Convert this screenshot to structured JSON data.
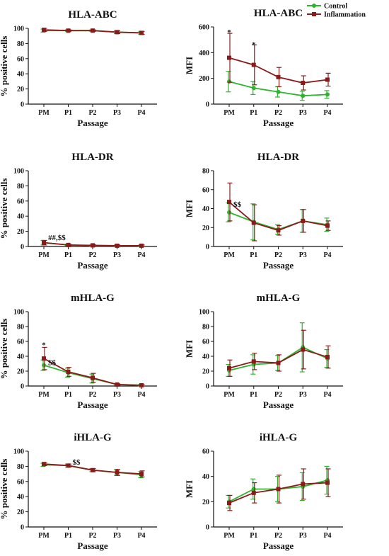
{
  "legend": [
    {
      "name": "Control",
      "color": "#2db52d",
      "marker": "circle"
    },
    {
      "name": "Inflammation",
      "color": "#8b1a1a",
      "marker": "square"
    }
  ],
  "chart_data": [
    {
      "type": "line",
      "title": "HLA-ABC",
      "xlabel": "Passage",
      "ylabel": "% positive cells",
      "categories": [
        "PM",
        "P1",
        "P2",
        "P3",
        "P4"
      ],
      "ylim": [
        0,
        100
      ],
      "yticks": [
        0,
        20,
        40,
        60,
        80,
        100
      ],
      "series": [
        {
          "name": "Control",
          "values": [
            97,
            97,
            97,
            95,
            94
          ],
          "err": [
            2,
            1,
            1,
            2,
            2
          ]
        },
        {
          "name": "Inflammation",
          "values": [
            98,
            97,
            97,
            95,
            94
          ],
          "err": [
            2,
            1,
            1,
            2,
            2
          ]
        }
      ],
      "annotations": []
    },
    {
      "type": "line",
      "title": "HLA-ABC",
      "xlabel": "Passage",
      "ylabel": "MFI",
      "categories": [
        "PM",
        "P1",
        "P2",
        "P3",
        "P4"
      ],
      "ylim": [
        0,
        600
      ],
      "yticks": [
        0,
        200,
        400,
        600
      ],
      "series": [
        {
          "name": "Control",
          "values": [
            175,
            125,
            95,
            65,
            75
          ],
          "err": [
            80,
            50,
            40,
            35,
            30
          ]
        },
        {
          "name": "Inflammation",
          "values": [
            360,
            305,
            210,
            165,
            190
          ],
          "err": [
            190,
            155,
            75,
            55,
            50
          ]
        }
      ],
      "annotations": [
        {
          "text": "*",
          "x": "PM",
          "y": 555
        },
        {
          "text": "*",
          "x": "P1",
          "y": 460
        }
      ]
    },
    {
      "type": "line",
      "title": "HLA-DR",
      "xlabel": "Passage",
      "ylabel": "% positive cells",
      "categories": [
        "PM",
        "P1",
        "P2",
        "P3",
        "P4"
      ],
      "ylim": [
        0,
        100
      ],
      "yticks": [
        0,
        20,
        40,
        60,
        80,
        100
      ],
      "series": [
        {
          "name": "Control",
          "values": [
            5,
            2,
            1,
            1,
            1
          ],
          "err": [
            3,
            1,
            1,
            1,
            1
          ]
        },
        {
          "name": "Inflammation",
          "values": [
            5,
            2,
            1.5,
            1,
            1
          ],
          "err": [
            3,
            1,
            1,
            1,
            1
          ]
        }
      ],
      "annotations": [
        {
          "text": "##,$$",
          "x": "PM",
          "y": 11
        }
      ]
    },
    {
      "type": "line",
      "title": "HLA-DR",
      "xlabel": "Passage",
      "ylabel": "MFI",
      "categories": [
        "PM",
        "P1",
        "P2",
        "P3",
        "P4"
      ],
      "ylim": [
        0,
        80
      ],
      "yticks": [
        0,
        20,
        40,
        60,
        80
      ],
      "series": [
        {
          "name": "Control",
          "values": [
            36,
            26,
            18,
            27,
            23
          ],
          "err": [
            10,
            19,
            5,
            12,
            7
          ]
        },
        {
          "name": "Inflammation",
          "values": [
            47,
            25,
            17,
            27,
            22
          ],
          "err": [
            20,
            19,
            5,
            12,
            5
          ]
        }
      ],
      "annotations": [
        {
          "text": "$$",
          "x": "PM",
          "y": 44
        }
      ]
    },
    {
      "type": "line",
      "title": "mHLA-G",
      "xlabel": "Passage",
      "ylabel": "% positive cells",
      "categories": [
        "PM",
        "P1",
        "P2",
        "P3",
        "P4"
      ],
      "ylim": [
        0,
        100
      ],
      "yticks": [
        0,
        20,
        40,
        60,
        80,
        100
      ],
      "series": [
        {
          "name": "Control",
          "values": [
            28,
            18,
            10,
            2,
            1
          ],
          "err": [
            7,
            6,
            6,
            1,
            1
          ]
        },
        {
          "name": "Inflammation",
          "values": [
            37,
            19,
            11,
            2,
            1
          ],
          "err": [
            15,
            6,
            6,
            1,
            1
          ]
        }
      ],
      "annotations": [
        {
          "text": "*",
          "x": "PM",
          "y": 55
        },
        {
          "text": "$$",
          "x": "PM",
          "y": 31
        }
      ]
    },
    {
      "type": "line",
      "title": "mHLA-G",
      "xlabel": "Passage",
      "ylabel": "MFI",
      "categories": [
        "PM",
        "P1",
        "P2",
        "P3",
        "P4"
      ],
      "ylim": [
        0,
        100
      ],
      "yticks": [
        0,
        20,
        40,
        60,
        80,
        100
      ],
      "series": [
        {
          "name": "Control",
          "values": [
            21,
            29,
            31,
            52,
            37
          ],
          "err": [
            8,
            13,
            10,
            33,
            12
          ]
        },
        {
          "name": "Inflammation",
          "values": [
            24,
            33,
            31,
            49,
            39
          ],
          "err": [
            11,
            11,
            11,
            26,
            15
          ]
        }
      ],
      "annotations": []
    },
    {
      "type": "line",
      "title": "iHLA-G",
      "xlabel": "Passage",
      "ylabel": "% positive cells",
      "categories": [
        "PM",
        "P1",
        "P2",
        "P3",
        "P4"
      ],
      "ylim": [
        0,
        100
      ],
      "yticks": [
        0,
        20,
        40,
        60,
        80,
        100
      ],
      "series": [
        {
          "name": "Control",
          "values": [
            82,
            81,
            75,
            72,
            69
          ],
          "err": [
            2,
            2,
            2,
            4,
            4
          ]
        },
        {
          "name": "Inflammation",
          "values": [
            83,
            81,
            75,
            72,
            70
          ],
          "err": [
            2,
            2,
            2,
            4,
            4
          ]
        }
      ],
      "annotations": [
        {
          "text": "$$",
          "x": "P1",
          "y": 85
        }
      ]
    },
    {
      "type": "line",
      "title": "iHLA-G",
      "xlabel": "Passage",
      "ylabel": "MFI",
      "categories": [
        "PM",
        "P1",
        "P2",
        "P3",
        "P4"
      ],
      "ylim": [
        0,
        60
      ],
      "yticks": [
        0,
        20,
        40,
        60
      ],
      "series": [
        {
          "name": "Control",
          "values": [
            20,
            30,
            30,
            32,
            37
          ],
          "err": [
            5,
            8,
            10,
            11,
            11
          ]
        },
        {
          "name": "Inflammation",
          "values": [
            19,
            27,
            30,
            34,
            35
          ],
          "err": [
            6,
            8,
            11,
            12,
            11
          ]
        }
      ],
      "annotations": []
    }
  ]
}
